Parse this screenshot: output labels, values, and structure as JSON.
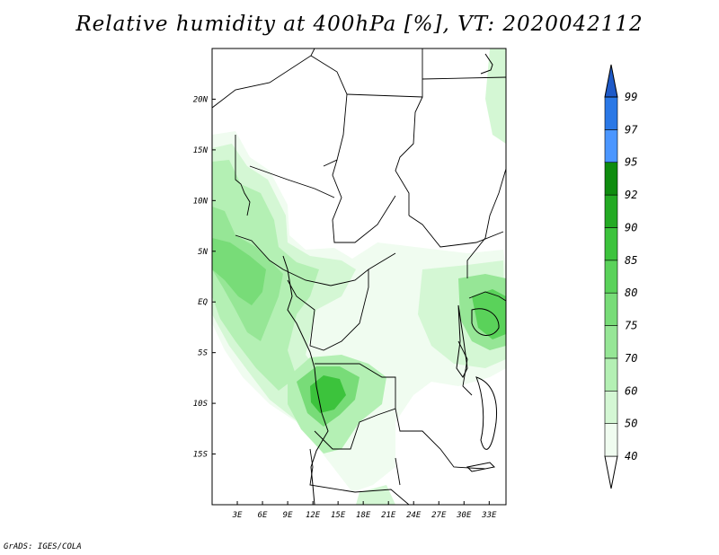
{
  "title": "Relative humidity at 400hPa [%], VT: 2020042112",
  "credit": "GrADS: IGES/COLA",
  "map": {
    "lon_labels": [
      "3E",
      "6E",
      "9E",
      "12E",
      "15E",
      "18E",
      "21E",
      "24E",
      "27E",
      "30E",
      "33E"
    ],
    "lat_labels": [
      "20N",
      "15N",
      "10N",
      "5N",
      "EQ",
      "5S",
      "10S",
      "15S"
    ],
    "lon_values": [
      3,
      6,
      9,
      12,
      15,
      18,
      21,
      24,
      27,
      30,
      33
    ],
    "lat_values": [
      20,
      15,
      10,
      5,
      0,
      -5,
      -10,
      -15
    ],
    "lon_range": [
      0,
      35
    ],
    "lat_range": [
      -20,
      25
    ]
  },
  "colorbar": {
    "levels": [
      "40",
      "50",
      "60",
      "70",
      "75",
      "80",
      "85",
      "90",
      "92",
      "95",
      "97",
      "99"
    ],
    "colors": [
      "#f0fcf0",
      "#d4f7d4",
      "#b4f0b4",
      "#96e696",
      "#78dc78",
      "#5ad25a",
      "#3cc33c",
      "#23aa23",
      "#0f8c0f",
      "#4b96ff",
      "#2a78e6",
      "#1e5ac8"
    ]
  },
  "humidity_fields": [
    {
      "region": "west-coast-plume",
      "level": "75"
    },
    {
      "region": "angola-core",
      "level": "85"
    },
    {
      "region": "lake-victoria",
      "level": "80"
    },
    {
      "region": "congo-basin",
      "level": "50"
    }
  ]
}
